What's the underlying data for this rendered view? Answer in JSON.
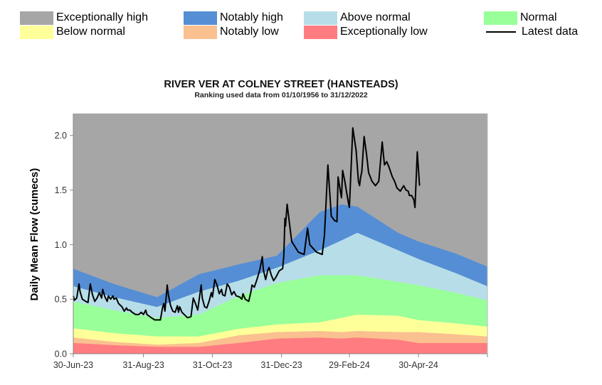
{
  "legend": {
    "items": [
      {
        "key": "exceptionally_high",
        "label": "Exceptionally high",
        "color": "#a6a6a6",
        "kind": "swatch"
      },
      {
        "key": "below_normal",
        "label": "Below normal",
        "color": "#ffff99",
        "kind": "swatch"
      },
      {
        "key": "notably_high",
        "label": "Notably high",
        "color": "#558ed5",
        "kind": "swatch"
      },
      {
        "key": "notably_low",
        "label": "Notably low",
        "color": "#fac090",
        "kind": "swatch"
      },
      {
        "key": "above_normal",
        "label": "Above normal",
        "color": "#b7dee8",
        "kind": "swatch"
      },
      {
        "key": "exceptionally_low",
        "label": "Exceptionally low",
        "color": "#ff7c80",
        "kind": "swatch"
      },
      {
        "key": "normal",
        "label": "Normal",
        "color": "#99ff99",
        "kind": "swatch"
      },
      {
        "key": "latest_data",
        "label": "Latest data",
        "color": "#000000",
        "kind": "line"
      }
    ]
  },
  "chart_data": {
    "type": "area",
    "title": "RIVER VER AT COLNEY STREET (HANSTEADS)",
    "subtitle": "Ranking used data from 01/10/1956 to 31/12/2022",
    "xlabel": "",
    "ylabel": "Daily Mean Flow (cumecs)",
    "x_unit": "days since 30-Jun-23",
    "xlim": [
      0,
      366
    ],
    "ylim": [
      0,
      2.2
    ],
    "yticks": [
      0.0,
      0.5,
      1.0,
      1.5,
      2.0
    ],
    "ytick_labels": [
      "0.0",
      "0.5",
      "1.0",
      "1.5",
      "2.0"
    ],
    "xticks": [
      0,
      62,
      123,
      184,
      244,
      305
    ],
    "xtick_labels": [
      "30-Jun-23",
      "31-Aug-23",
      "31-Oct-23",
      "31-Dec-23",
      "29-Feb-24",
      "30-Apr-24"
    ],
    "grid": false,
    "legend_position": "top",
    "band_x": [
      0,
      36,
      74,
      111,
      146,
      180,
      218,
      237,
      251,
      287,
      305,
      338,
      366
    ],
    "bands": [
      {
        "key": "exceptionally_low",
        "upper": [
          0.1,
          0.08,
          0.065,
          0.065,
          0.1,
          0.14,
          0.15,
          0.14,
          0.15,
          0.13,
          0.1,
          0.1,
          0.1
        ]
      },
      {
        "key": "notably_low",
        "upper": [
          0.15,
          0.11,
          0.085,
          0.1,
          0.17,
          0.2,
          0.21,
          0.2,
          0.21,
          0.2,
          0.2,
          0.18,
          0.16
        ]
      },
      {
        "key": "below_normal",
        "upper": [
          0.235,
          0.19,
          0.16,
          0.16,
          0.23,
          0.27,
          0.29,
          0.33,
          0.36,
          0.35,
          0.31,
          0.28,
          0.25
        ]
      },
      {
        "key": "normal",
        "upper": [
          0.48,
          0.4,
          0.33,
          0.36,
          0.53,
          0.65,
          0.72,
          0.72,
          0.72,
          0.66,
          0.63,
          0.56,
          0.49
        ]
      },
      {
        "key": "above_normal",
        "upper": [
          0.62,
          0.52,
          0.43,
          0.57,
          0.67,
          0.79,
          0.95,
          1.04,
          1.11,
          0.95,
          0.87,
          0.74,
          0.62
        ]
      },
      {
        "key": "notably_high",
        "upper": [
          0.78,
          0.64,
          0.52,
          0.73,
          0.82,
          0.9,
          1.3,
          1.37,
          1.35,
          1.11,
          1.03,
          0.92,
          0.8
        ]
      },
      {
        "key": "exceptionally_high",
        "upper": [
          2.2,
          2.2,
          2.2,
          2.2,
          2.2,
          2.2,
          2.2,
          2.2,
          2.2,
          2.2,
          2.2,
          2.2,
          2.2
        ]
      }
    ],
    "series": [
      {
        "name": "Latest data",
        "x": [
          0,
          1,
          3,
          5,
          6,
          8,
          11,
          13,
          15,
          17,
          19,
          21,
          23,
          25,
          26,
          28,
          30,
          31,
          33,
          35,
          36,
          38,
          40,
          43,
          45,
          47,
          48,
          50,
          52,
          55,
          58,
          60,
          62,
          64,
          65,
          69,
          72,
          75,
          77,
          79,
          80,
          81,
          83,
          84,
          86,
          88,
          90,
          92,
          93,
          94,
          96,
          99,
          101,
          104,
          106,
          108,
          110,
          113,
          114,
          116,
          118,
          120,
          122,
          123,
          125,
          127,
          129,
          131,
          132,
          134,
          136,
          138,
          140,
          142,
          144,
          147,
          149,
          150,
          152,
          155,
          157,
          158,
          160,
          162,
          164,
          165,
          167,
          168,
          170,
          172,
          173,
          175,
          177,
          179,
          182,
          185,
          186,
          187,
          187.5,
          189,
          193,
          199,
          204,
          207,
          209,
          215,
          220,
          222,
          225,
          228,
          231,
          233,
          234,
          236,
          237,
          238,
          240,
          243,
          244,
          247,
          250,
          252,
          253,
          254,
          255,
          257,
          259,
          261,
          264,
          267,
          270,
          273,
          275,
          277,
          279,
          282,
          284,
          286,
          289,
          292,
          294,
          296,
          297,
          299,
          301,
          302,
          304,
          306
        ],
        "y": [
          0.53,
          0.49,
          0.51,
          0.64,
          0.57,
          0.5,
          0.48,
          0.47,
          0.64,
          0.54,
          0.48,
          0.51,
          0.56,
          0.51,
          0.59,
          0.52,
          0.48,
          0.53,
          0.5,
          0.53,
          0.5,
          0.51,
          0.46,
          0.43,
          0.39,
          0.42,
          0.4,
          0.4,
          0.38,
          0.36,
          0.36,
          0.38,
          0.36,
          0.4,
          0.36,
          0.33,
          0.31,
          0.31,
          0.31,
          0.43,
          0.46,
          0.39,
          0.63,
          0.54,
          0.44,
          0.39,
          0.38,
          0.44,
          0.38,
          0.43,
          0.38,
          0.35,
          0.33,
          0.34,
          0.51,
          0.46,
          0.4,
          0.63,
          0.51,
          0.43,
          0.42,
          0.48,
          0.56,
          0.52,
          0.68,
          0.63,
          0.55,
          0.59,
          0.54,
          0.53,
          0.64,
          0.61,
          0.54,
          0.57,
          0.53,
          0.52,
          0.5,
          0.55,
          0.5,
          0.48,
          0.57,
          0.63,
          0.61,
          0.67,
          0.74,
          0.78,
          0.89,
          0.77,
          0.68,
          0.77,
          0.79,
          0.72,
          0.67,
          0.7,
          0.76,
          0.78,
          0.89,
          1.24,
          1.17,
          1.37,
          1.03,
          0.93,
          0.91,
          1.15,
          1.0,
          0.93,
          0.91,
          1.09,
          1.73,
          1.26,
          1.22,
          1.21,
          1.62,
          1.49,
          1.43,
          1.68,
          1.58,
          1.39,
          1.34,
          2.07,
          1.86,
          1.58,
          1.54,
          1.62,
          1.67,
          1.99,
          1.84,
          1.66,
          1.58,
          1.54,
          1.58,
          1.94,
          1.73,
          1.76,
          1.71,
          1.62,
          1.58,
          1.52,
          1.49,
          1.54,
          1.5,
          1.49,
          1.45,
          1.45,
          1.41,
          1.34,
          1.85,
          1.54
        ]
      }
    ]
  }
}
